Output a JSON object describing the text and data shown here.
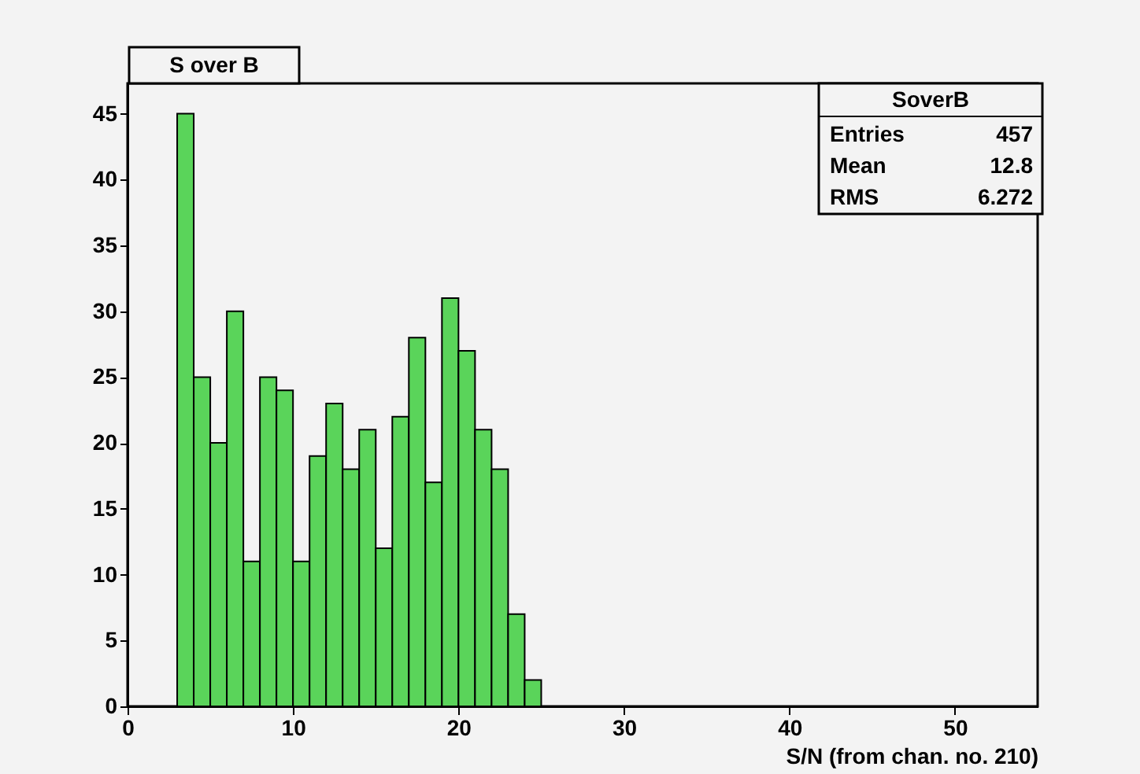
{
  "chart_data": {
    "type": "histogram",
    "title": "S over B",
    "xlabel": "S/N (from chan. no. 210)",
    "bins": [
      3,
      4,
      5,
      6,
      7,
      8,
      9,
      10,
      11,
      12,
      13,
      14,
      15,
      16,
      17,
      18,
      19,
      20,
      21,
      22,
      23,
      24,
      25
    ],
    "values": [
      45,
      25,
      20,
      30,
      11,
      25,
      24,
      11,
      19,
      23,
      18,
      21,
      12,
      22,
      28,
      17,
      31,
      27,
      21,
      18,
      7,
      2
    ],
    "color": "#5ad45a",
    "xlim": [
      0,
      55
    ],
    "xticks": [
      0,
      10,
      20,
      30,
      40,
      50
    ],
    "ylim": [
      0,
      47.3
    ],
    "yticks": [
      0,
      5,
      10,
      15,
      20,
      25,
      30,
      35,
      40,
      45
    ],
    "annotations": [
      "SoverB",
      "Entries",
      "457",
      "Mean",
      "12.8",
      "RMS",
      "6.272"
    ],
    "grid": false
  }
}
